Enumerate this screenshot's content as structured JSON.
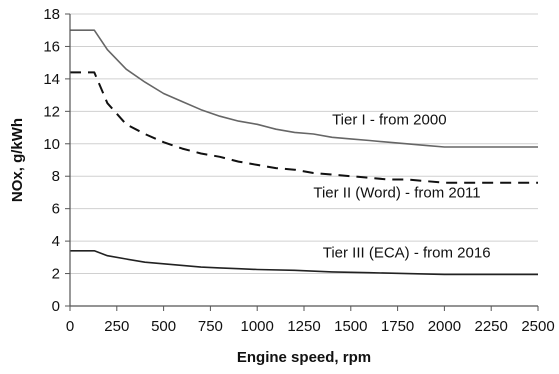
{
  "chart_data": {
    "type": "line",
    "xlabel": "Engine speed, rpm",
    "ylabel": "NOx, g/kWh",
    "xlim": [
      0,
      2500
    ],
    "ylim": [
      0,
      18
    ],
    "xticks": [
      0,
      250,
      500,
      750,
      1000,
      1250,
      1500,
      1750,
      2000,
      2250,
      2500
    ],
    "yticks": [
      0,
      2,
      4,
      6,
      8,
      10,
      12,
      14,
      16,
      18
    ],
    "grid": "horizontal",
    "series": [
      {
        "name": "Tier I - from 2000",
        "style": "solid",
        "color": "#666666",
        "points": [
          [
            0,
            17.0
          ],
          [
            130,
            17.0
          ],
          [
            200,
            15.8
          ],
          [
            300,
            14.6
          ],
          [
            400,
            13.8
          ],
          [
            500,
            13.1
          ],
          [
            600,
            12.6
          ],
          [
            700,
            12.1
          ],
          [
            800,
            11.7
          ],
          [
            900,
            11.4
          ],
          [
            1000,
            11.2
          ],
          [
            1100,
            10.9
          ],
          [
            1200,
            10.7
          ],
          [
            1300,
            10.6
          ],
          [
            1400,
            10.4
          ],
          [
            1500,
            10.3
          ],
          [
            1600,
            10.2
          ],
          [
            1700,
            10.1
          ],
          [
            1800,
            10.0
          ],
          [
            1900,
            9.9
          ],
          [
            2000,
            9.8
          ],
          [
            2500,
            9.8
          ]
        ]
      },
      {
        "name": "Tier II (Word) - from 2011",
        "style": "dashed",
        "color": "#111111",
        "points": [
          [
            0,
            14.4
          ],
          [
            130,
            14.4
          ],
          [
            200,
            12.5
          ],
          [
            300,
            11.2
          ],
          [
            400,
            10.6
          ],
          [
            500,
            10.1
          ],
          [
            600,
            9.7
          ],
          [
            700,
            9.4
          ],
          [
            800,
            9.2
          ],
          [
            900,
            8.9
          ],
          [
            1000,
            8.7
          ],
          [
            1100,
            8.5
          ],
          [
            1200,
            8.4
          ],
          [
            1300,
            8.2
          ],
          [
            1400,
            8.1
          ],
          [
            1500,
            8.0
          ],
          [
            1600,
            7.9
          ],
          [
            1700,
            7.8
          ],
          [
            1800,
            7.8
          ],
          [
            1900,
            7.7
          ],
          [
            2000,
            7.6
          ],
          [
            2500,
            7.6
          ]
        ]
      },
      {
        "name": "Tier III (ECA) - from 2016",
        "style": "solid",
        "color": "#222222",
        "points": [
          [
            0,
            3.4
          ],
          [
            130,
            3.4
          ],
          [
            200,
            3.1
          ],
          [
            300,
            2.9
          ],
          [
            400,
            2.7
          ],
          [
            500,
            2.6
          ],
          [
            600,
            2.5
          ],
          [
            700,
            2.4
          ],
          [
            800,
            2.35
          ],
          [
            900,
            2.3
          ],
          [
            1000,
            2.25
          ],
          [
            1200,
            2.2
          ],
          [
            1400,
            2.1
          ],
          [
            1600,
            2.05
          ],
          [
            1800,
            2.0
          ],
          [
            2000,
            1.95
          ],
          [
            2500,
            1.95
          ]
        ]
      }
    ],
    "annotations": [
      {
        "text": "Tier I - from 2000",
        "x": 1400,
        "y": 11.2
      },
      {
        "text": "Tier II (Word) - from 2011",
        "x": 1300,
        "y": 6.7
      },
      {
        "text": "Tier III (ECA) - from 2016",
        "x": 1350,
        "y": 3.0
      }
    ]
  }
}
